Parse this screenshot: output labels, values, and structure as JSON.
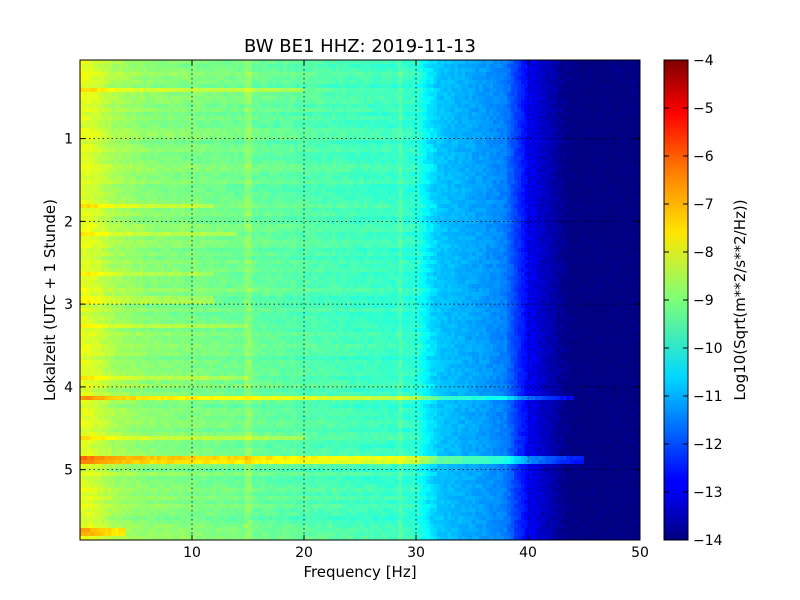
{
  "chart_data": {
    "type": "heatmap",
    "title": "BW BE1 HHZ: 2019-11-13",
    "xlabel": "Frequency [Hz]",
    "ylabel": "Lokalzeit (UTC + 1 Stunde)",
    "xlim": [
      0,
      50
    ],
    "ylim": [
      5.85,
      0.05
    ],
    "x_ticks": [
      10,
      20,
      30,
      40,
      50
    ],
    "x_tick_labels": [
      "10",
      "20",
      "30",
      "40",
      "50"
    ],
    "y_ticks": [
      1,
      2,
      3,
      4,
      5
    ],
    "y_tick_labels": [
      "1",
      "2",
      "3",
      "4",
      "5"
    ],
    "grid": true,
    "colormap": "jet",
    "colorbar": {
      "label": "Log10(Sqrt(m**2/s**2/Hz))",
      "range": [
        -14,
        -4
      ],
      "ticks": [
        -4,
        -5,
        -6,
        -7,
        -8,
        -9,
        -10,
        -11,
        -12,
        -13,
        -14
      ],
      "tick_labels": [
        "−4",
        "−5",
        "−6",
        "−7",
        "−8",
        "−9",
        "−10",
        "−11",
        "−12",
        "−13",
        "−14"
      ]
    },
    "spectrum_profile": {
      "frequency_hz": [
        0,
        1,
        3,
        6,
        10,
        15,
        20,
        25,
        28,
        30,
        31,
        32,
        34,
        36,
        38,
        39,
        40,
        41,
        42,
        43,
        44,
        45,
        50
      ],
      "level": [
        -8.0,
        -8.1,
        -8.6,
        -8.9,
        -9.0,
        -9.2,
        -9.4,
        -9.6,
        -9.7,
        -9.8,
        -10.4,
        -10.8,
        -11.0,
        -11.2,
        -11.5,
        -12.2,
        -12.8,
        -13.2,
        -13.5,
        -13.8,
        -14.0,
        -14.0,
        -14.0
      ]
    },
    "tonal_lines_hz": [
      15,
      28.5
    ],
    "bright_bands": [
      {
        "time": 0.4,
        "f_max": 20,
        "delta": 0.6
      },
      {
        "time": 1.8,
        "f_max": 12,
        "delta": 0.5
      },
      {
        "time": 2.15,
        "f_max": 14,
        "delta": 0.6
      },
      {
        "time": 2.65,
        "f_max": 12,
        "delta": 0.5
      },
      {
        "time": 2.95,
        "f_max": 12,
        "delta": 0.5
      },
      {
        "time": 3.25,
        "f_max": 15,
        "delta": 0.5
      },
      {
        "time": 3.9,
        "f_max": 15,
        "delta": 0.6
      },
      {
        "time": 4.12,
        "f_max": 44,
        "delta": 1.2
      },
      {
        "time": 4.6,
        "f_max": 20,
        "delta": 0.5
      },
      {
        "time": 4.84,
        "f_max": 45,
        "delta": 1.6
      },
      {
        "time": 4.92,
        "f_max": 45,
        "delta": 1.5
      },
      {
        "time": 5.75,
        "f_max": 4,
        "delta": 1.0
      }
    ]
  }
}
